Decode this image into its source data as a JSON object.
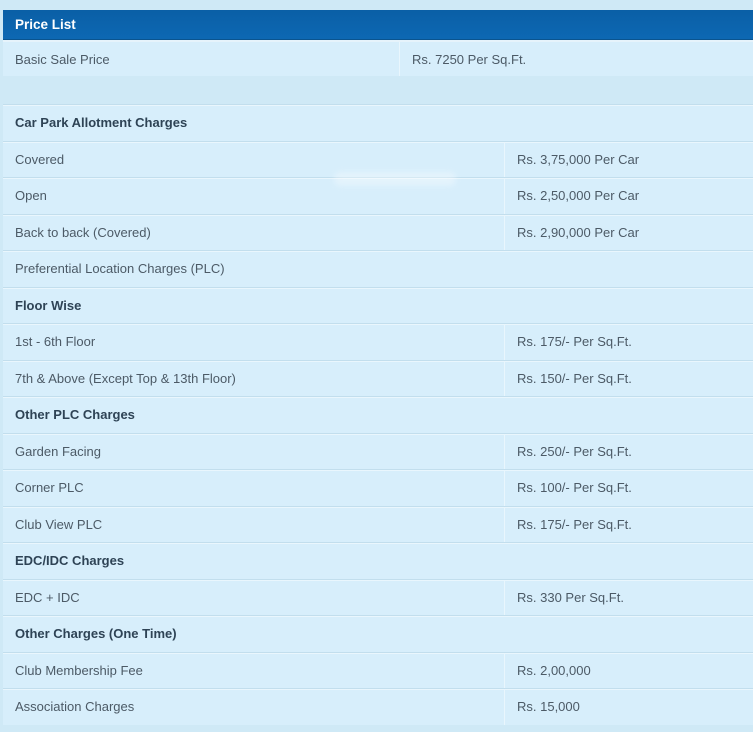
{
  "colors": {
    "header_bar": "#0c64ad",
    "header_bar_text": "#ffffff",
    "page_bg": "#cfe9f6",
    "row_bg": "#d7eefb",
    "section_text": "#2e4355",
    "row_text": "#4c5a66",
    "divider_light": "#e9f6fd",
    "divider_dark": "#c2deed"
  },
  "price_list": {
    "title": "Price List",
    "rows": [
      {
        "label": "Basic Sale Price",
        "value": "Rs. 7250 Per Sq.Ft."
      }
    ]
  },
  "charges_table": {
    "rows": [
      {
        "type": "section",
        "label": "Car Park Allotment Charges",
        "value": ""
      },
      {
        "type": "data",
        "label": "Covered",
        "value": "Rs. 3,75,000 Per Car"
      },
      {
        "type": "data",
        "label": "Open",
        "value": "Rs. 2,50,000 Per Car"
      },
      {
        "type": "data",
        "label": "Back to back (Covered)",
        "value": "Rs. 2,90,000 Per Car"
      },
      {
        "type": "full",
        "label": "Preferential Location Charges (PLC)",
        "value": ""
      },
      {
        "type": "section",
        "label": "Floor Wise",
        "value": ""
      },
      {
        "type": "data",
        "label": "1st - 6th Floor",
        "value": "Rs. 175/- Per Sq.Ft."
      },
      {
        "type": "data",
        "label": "7th & Above (Except Top & 13th Floor)",
        "value": "Rs. 150/- Per Sq.Ft."
      },
      {
        "type": "section",
        "label": "Other PLC Charges",
        "value": ""
      },
      {
        "type": "data",
        "label": "Garden Facing",
        "value": "Rs. 250/- Per Sq.Ft."
      },
      {
        "type": "data",
        "label": "Corner PLC",
        "value": "Rs. 100/- Per Sq.Ft."
      },
      {
        "type": "data",
        "label": "Club View PLC",
        "value": "Rs. 175/- Per Sq.Ft."
      },
      {
        "type": "section",
        "label": "EDC/IDC Charges",
        "value": ""
      },
      {
        "type": "data",
        "label": "EDC + IDC",
        "value": "Rs. 330 Per Sq.Ft."
      },
      {
        "type": "section",
        "label": "Other Charges (One Time)",
        "value": ""
      },
      {
        "type": "data",
        "label": "Club Membership Fee",
        "value": "Rs. 2,00,000"
      },
      {
        "type": "data",
        "label": "Association Charges",
        "value": "Rs. 15,000"
      }
    ]
  }
}
